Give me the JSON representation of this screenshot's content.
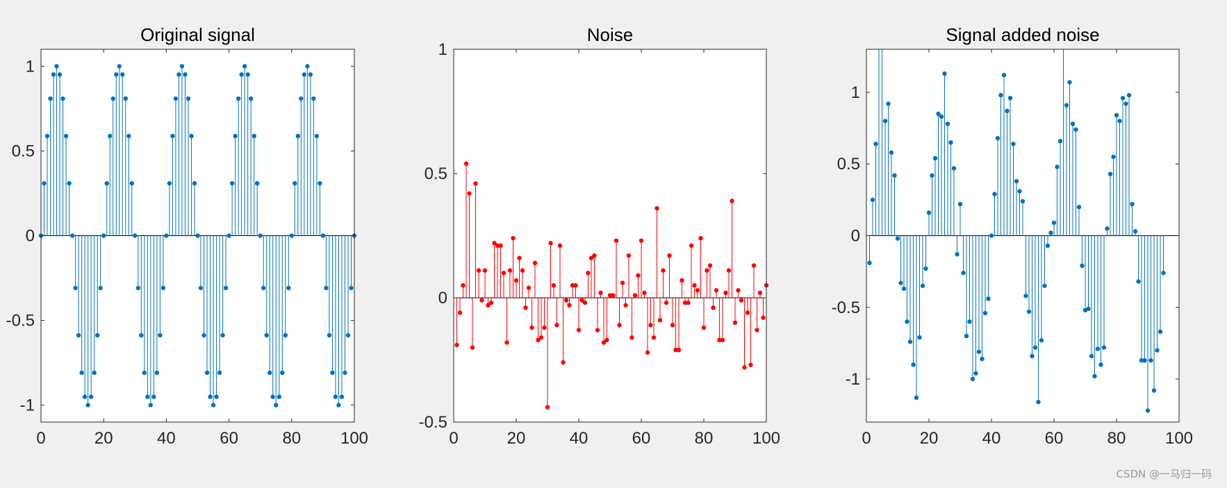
{
  "watermark": "CSDN @一马归一码",
  "chart_data": [
    {
      "type": "stem",
      "title": "Original signal",
      "color": "#0072bd",
      "xlim": [
        0,
        100
      ],
      "ylim": [
        -1.1,
        1.1
      ],
      "xticks": [
        0,
        20,
        40,
        60,
        80,
        100
      ],
      "yticks": [
        -1,
        -0.5,
        0,
        0.5,
        1
      ],
      "xtick_labels": [
        "0",
        "20",
        "40",
        "60",
        "80",
        "100"
      ],
      "ytick_labels": [
        "-1",
        "-0.5",
        "0",
        "0.5",
        "1"
      ],
      "grid": false,
      "x_start": 0,
      "values": [
        0.0,
        0.309,
        0.588,
        0.809,
        0.951,
        1.0,
        0.951,
        0.809,
        0.588,
        0.309,
        0.0,
        -0.309,
        -0.588,
        -0.809,
        -0.951,
        -1.0,
        -0.951,
        -0.809,
        -0.588,
        -0.309,
        0.0,
        0.309,
        0.588,
        0.809,
        0.951,
        1.0,
        0.951,
        0.809,
        0.588,
        0.309,
        0.0,
        -0.309,
        -0.588,
        -0.809,
        -0.951,
        -1.0,
        -0.951,
        -0.809,
        -0.588,
        -0.309,
        0.0,
        0.309,
        0.588,
        0.809,
        0.951,
        1.0,
        0.951,
        0.809,
        0.588,
        0.309,
        0.0,
        -0.309,
        -0.588,
        -0.809,
        -0.951,
        -1.0,
        -0.951,
        -0.809,
        -0.588,
        -0.309,
        0.0,
        0.309,
        0.588,
        0.809,
        0.951,
        1.0,
        0.951,
        0.809,
        0.588,
        0.309,
        0.0,
        -0.309,
        -0.588,
        -0.809,
        -0.951,
        -1.0,
        -0.951,
        -0.809,
        -0.588,
        -0.309,
        0.0,
        0.309,
        0.588,
        0.809,
        0.951,
        1.0,
        0.951,
        0.809,
        0.588,
        0.309,
        0.0,
        -0.309,
        -0.588,
        -0.809,
        -0.951,
        -1.0,
        -0.951,
        -0.809,
        -0.588,
        -0.309,
        0.0
      ]
    },
    {
      "type": "stem",
      "title": "Noise",
      "color": "#ff0000",
      "xlim": [
        0,
        100
      ],
      "ylim": [
        -0.5,
        1
      ],
      "xticks": [
        0,
        20,
        40,
        60,
        80,
        100
      ],
      "yticks": [
        -0.5,
        0,
        0.5,
        1
      ],
      "xtick_labels": [
        "0",
        "20",
        "40",
        "60",
        "80",
        "100"
      ],
      "ytick_labels": [
        "-0.5",
        "0",
        "0.5",
        "1"
      ],
      "grid": false,
      "x_start": 1,
      "values": [
        -0.19,
        -0.06,
        0.05,
        0.54,
        0.42,
        -0.2,
        0.46,
        0.11,
        -0.01,
        0.11,
        -0.03,
        -0.02,
        0.22,
        0.21,
        0.21,
        0.1,
        -0.18,
        0.11,
        0.24,
        0.07,
        0.16,
        0.11,
        -0.04,
        0.04,
        -0.12,
        0.14,
        -0.17,
        -0.16,
        -0.12,
        -0.44,
        0.22,
        0.05,
        -0.11,
        0.21,
        -0.26,
        -0.01,
        -0.03,
        0.05,
        0.05,
        -0.13,
        -0.01,
        -0.02,
        0.1,
        0.16,
        0.17,
        -0.13,
        0.02,
        -0.18,
        -0.17,
        0.01,
        0.01,
        0.23,
        -0.11,
        0.06,
        -0.03,
        0.17,
        -0.16,
        0.01,
        0.09,
        0.23,
        0.02,
        -0.22,
        -0.11,
        -0.16,
        0.36,
        -0.09,
        0.11,
        -0.02,
        0.17,
        -0.11,
        -0.21,
        -0.21,
        0.07,
        -0.02,
        -0.02,
        0.21,
        0.05,
        0.03,
        0.24,
        -0.12,
        0.11,
        0.13,
        -0.04,
        0.03,
        -0.17,
        -0.17,
        0.02,
        0.11,
        0.39,
        -0.1,
        0.03,
        -0.01,
        -0.28,
        -0.06,
        -0.27,
        0.13,
        -0.13,
        0.02,
        -0.08,
        0.05
      ]
    },
    {
      "type": "stem",
      "title": "Signal added noise",
      "color": "#0072bd",
      "xlim": [
        0,
        100
      ],
      "ylim": [
        -1.3,
        1.3
      ],
      "xticks": [
        0,
        20,
        40,
        60,
        80,
        100
      ],
      "yticks": [
        -1,
        -0.5,
        0,
        0.5,
        1
      ],
      "xtick_labels": [
        "0",
        "20",
        "40",
        "60",
        "80",
        "100"
      ],
      "ytick_labels": [
        "-1",
        "-0.5",
        "0",
        "0.5",
        "1"
      ],
      "grid": false,
      "x_start": 1,
      "values": [
        -0.19,
        0.25,
        0.64,
        1.35,
        1.37,
        0.8,
        0.92,
        0.58,
        0.42,
        -0.02,
        -0.33,
        -0.37,
        -0.6,
        -0.74,
        -0.9,
        -1.13,
        -0.71,
        -0.35,
        -0.23,
        0.16,
        0.42,
        0.54,
        0.85,
        0.83,
        1.13,
        0.78,
        0.65,
        0.47,
        -0.13,
        0.22,
        -0.26,
        -0.7,
        -0.6,
        -1.0,
        -0.96,
        -0.81,
        -0.86,
        -0.54,
        -0.44,
        0.0,
        0.29,
        0.68,
        0.98,
        1.12,
        0.87,
        0.96,
        0.64,
        0.38,
        0.31,
        0.24,
        -0.42,
        -0.53,
        -0.84,
        -0.78,
        -1.16,
        -0.73,
        -0.35,
        -0.07,
        0.02,
        0.09,
        0.48,
        0.66,
        1.35,
        0.91,
        1.07,
        0.78,
        0.74,
        0.2,
        -0.21,
        -0.52,
        -0.51,
        -0.84,
        -0.98,
        -0.79,
        -0.9,
        -0.78,
        0.05,
        0.43,
        0.55,
        0.84,
        0.8,
        0.96,
        0.92,
        0.98,
        0.22,
        0.03,
        -0.32,
        -0.87,
        -0.87,
        -1.22,
        -0.87,
        -1.08,
        -0.8,
        -0.67,
        -0.26
      ]
    }
  ]
}
